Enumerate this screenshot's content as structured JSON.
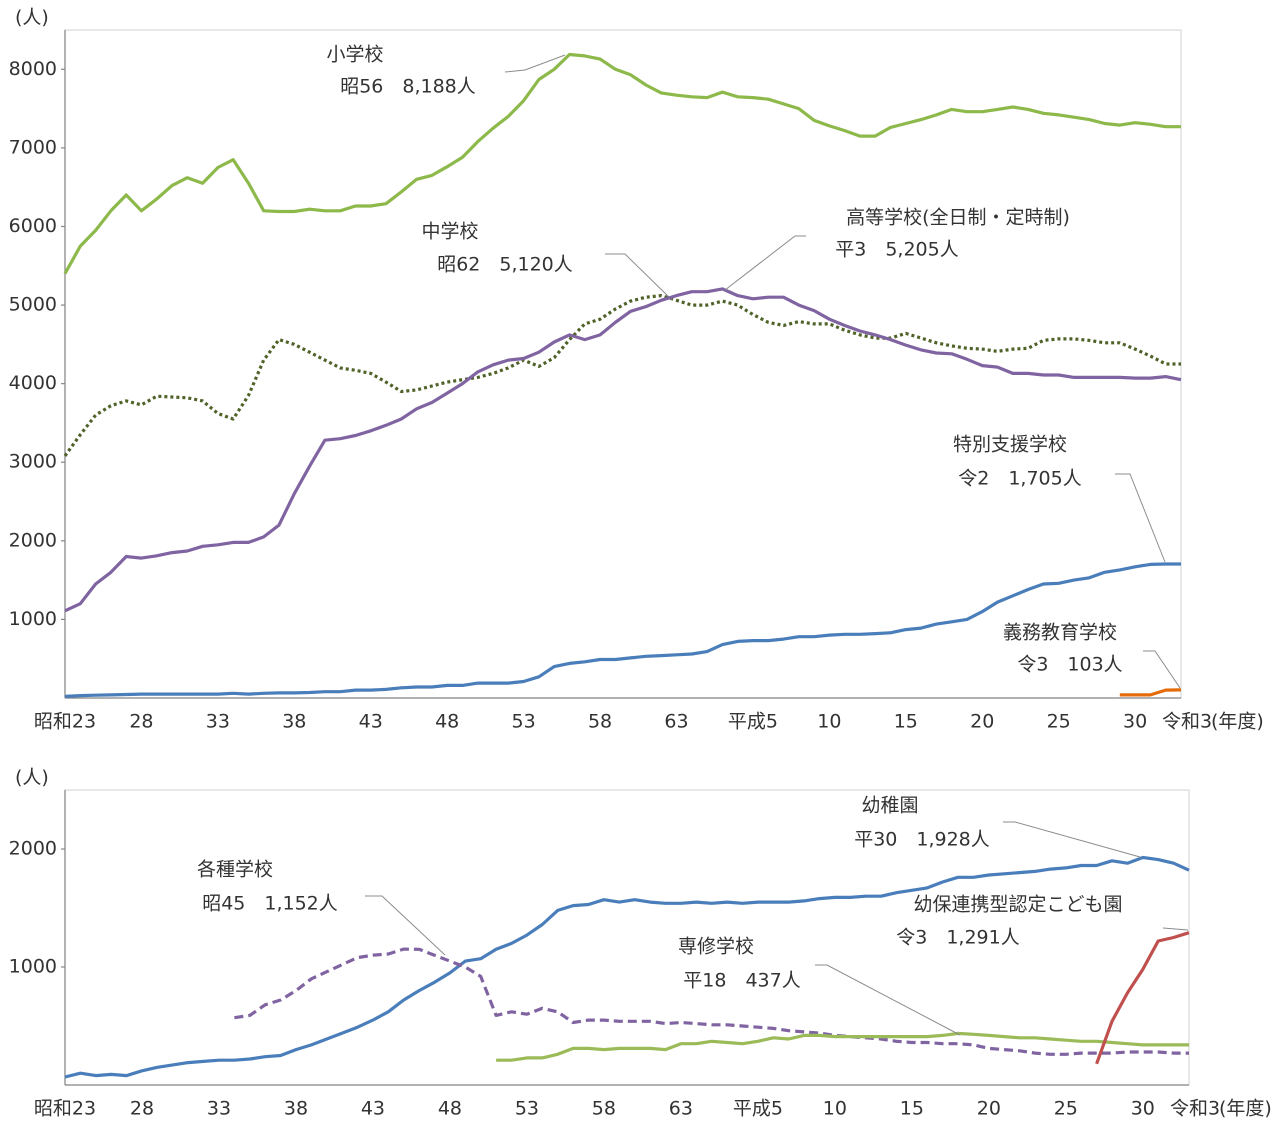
{
  "chart_data": [
    {
      "type": "line",
      "y_unit": "(人)",
      "x_unit": "(年度)",
      "categories": [
        "昭和23",
        null,
        null,
        null,
        null,
        "28",
        null,
        null,
        null,
        null,
        "33",
        null,
        null,
        null,
        null,
        "38",
        null,
        null,
        null,
        null,
        "43",
        null,
        null,
        null,
        null,
        "48",
        null,
        null,
        null,
        null,
        "53",
        null,
        null,
        null,
        null,
        "58",
        null,
        null,
        null,
        null,
        "63",
        null,
        null,
        null,
        null,
        "平成5",
        null,
        null,
        null,
        null,
        "10",
        null,
        null,
        null,
        null,
        "15",
        null,
        null,
        null,
        null,
        "20",
        null,
        null,
        null,
        null,
        "25",
        null,
        null,
        null,
        null,
        "30",
        null,
        null,
        "令和3"
      ],
      "ylim": [
        0,
        8500
      ],
      "yticks": [
        1000,
        2000,
        3000,
        4000,
        5000,
        6000,
        7000,
        8000
      ],
      "grid": false,
      "series": [
        {
          "name": "小学校",
          "annotation": "昭56　8,188人",
          "color": "#8db84a",
          "dash": "solid",
          "values": [
            5400,
            5750,
            5950,
            6200,
            6400,
            6200,
            6350,
            6520,
            6620,
            6550,
            6750,
            6850,
            6550,
            6200,
            6190,
            6190,
            6220,
            6200,
            6200,
            6260,
            6260,
            6290,
            6440,
            6600,
            6650,
            6760,
            6880,
            7080,
            7250,
            7400,
            7600,
            7870,
            8000,
            8188,
            8170,
            8130,
            8000,
            7930,
            7800,
            7700,
            7670,
            7650,
            7640,
            7710,
            7650,
            7640,
            7620,
            7560,
            7500,
            7350,
            7280,
            7220,
            7150,
            7150,
            7260,
            7310,
            7360,
            7420,
            7490,
            7460,
            7460,
            7490,
            7520,
            7490,
            7440,
            7420,
            7390,
            7360,
            7310,
            7290,
            7320,
            7300,
            7270,
            7270
          ]
        },
        {
          "name": "中学校",
          "annotation": "昭62　5,120人",
          "color": "#4f6228",
          "dash": "dotted",
          "values": [
            3080,
            3350,
            3600,
            3720,
            3780,
            3730,
            3840,
            3830,
            3820,
            3780,
            3620,
            3550,
            3850,
            4300,
            4560,
            4500,
            4400,
            4300,
            4200,
            4170,
            4130,
            4020,
            3900,
            3920,
            3970,
            4020,
            4050,
            4080,
            4130,
            4200,
            4300,
            4220,
            4330,
            4560,
            4760,
            4820,
            4950,
            5050,
            5100,
            5120,
            5060,
            5000,
            5000,
            5050,
            5000,
            4880,
            4780,
            4740,
            4790,
            4760,
            4760,
            4680,
            4620,
            4580,
            4580,
            4640,
            4580,
            4520,
            4480,
            4450,
            4440,
            4410,
            4440,
            4450,
            4550,
            4570,
            4570,
            4550,
            4520,
            4520,
            4440,
            4350,
            4250,
            4250
          ]
        },
        {
          "name": "高等学校(全日制・定時制)",
          "annotation": "平3　5,205人",
          "color": "#8064a2",
          "dash": "solid",
          "values": [
            1110,
            1200,
            1450,
            1600,
            1800,
            1780,
            1810,
            1850,
            1870,
            1930,
            1950,
            1980,
            1980,
            2050,
            2200,
            2600,
            2950,
            3280,
            3300,
            3340,
            3400,
            3470,
            3550,
            3680,
            3760,
            3880,
            4000,
            4150,
            4240,
            4300,
            4320,
            4400,
            4530,
            4620,
            4560,
            4620,
            4780,
            4920,
            4980,
            5060,
            5120,
            5170,
            5170,
            5205,
            5120,
            5080,
            5100,
            5100,
            5000,
            4930,
            4820,
            4740,
            4670,
            4620,
            4560,
            4490,
            4430,
            4390,
            4380,
            4310,
            4230,
            4210,
            4130,
            4130,
            4110,
            4110,
            4080,
            4080,
            4080,
            4080,
            4070,
            4070,
            4090,
            4050
          ]
        },
        {
          "name": "特別支援学校",
          "annotation": "令2　1,705人",
          "color": "#4a7ebb",
          "dash": "solid",
          "values": [
            20,
            30,
            35,
            40,
            45,
            50,
            50,
            50,
            50,
            50,
            50,
            60,
            50,
            60,
            65,
            65,
            70,
            80,
            80,
            100,
            100,
            110,
            130,
            140,
            140,
            160,
            160,
            190,
            190,
            190,
            210,
            270,
            400,
            440,
            460,
            490,
            490,
            510,
            530,
            540,
            550,
            560,
            590,
            680,
            720,
            730,
            730,
            750,
            780,
            780,
            800,
            810,
            810,
            820,
            830,
            870,
            890,
            940,
            970,
            1000,
            1100,
            1220,
            1300,
            1380,
            1450,
            1460,
            1500,
            1530,
            1600,
            1630,
            1670,
            1700,
            1705,
            1705
          ]
        },
        {
          "name": "義務教育学校",
          "annotation": "令3　103人",
          "color": "#e46c0a",
          "dash": "solid",
          "values": [
            null,
            null,
            null,
            null,
            null,
            null,
            null,
            null,
            null,
            null,
            null,
            null,
            null,
            null,
            null,
            null,
            null,
            null,
            null,
            null,
            null,
            null,
            null,
            null,
            null,
            null,
            null,
            null,
            null,
            null,
            null,
            null,
            null,
            null,
            null,
            null,
            null,
            null,
            null,
            null,
            null,
            null,
            null,
            null,
            null,
            null,
            null,
            null,
            null,
            null,
            null,
            null,
            null,
            null,
            null,
            null,
            null,
            null,
            null,
            null,
            null,
            null,
            null,
            null,
            null,
            null,
            null,
            null,
            null,
            40,
            40,
            40,
            100,
            103
          ]
        }
      ]
    },
    {
      "type": "line",
      "y_unit": "(人)",
      "x_unit": "(年度)",
      "categories": [
        "昭和23",
        null,
        null,
        null,
        null,
        "28",
        null,
        null,
        null,
        null,
        "33",
        null,
        null,
        null,
        null,
        "38",
        null,
        null,
        null,
        null,
        "43",
        null,
        null,
        null,
        null,
        "48",
        null,
        null,
        null,
        null,
        "53",
        null,
        null,
        null,
        null,
        "58",
        null,
        null,
        null,
        null,
        "63",
        null,
        null,
        null,
        null,
        "平成5",
        null,
        null,
        null,
        null,
        "10",
        null,
        null,
        null,
        null,
        "15",
        null,
        null,
        null,
        null,
        "20",
        null,
        null,
        null,
        null,
        "25",
        null,
        null,
        null,
        null,
        "30",
        null,
        null,
        "令和3"
      ],
      "ylim": [
        0,
        2500
      ],
      "yticks": [
        1000,
        2000
      ],
      "grid": false,
      "series": [
        {
          "name": "幼稚園",
          "annotation": "平30　1,928人",
          "color": "#4a7ebb",
          "dash": "solid",
          "values": [
            68,
            100,
            80,
            90,
            80,
            120,
            150,
            170,
            190,
            200,
            210,
            210,
            220,
            240,
            250,
            300,
            340,
            390,
            440,
            490,
            550,
            620,
            720,
            800,
            870,
            950,
            1050,
            1070,
            1150,
            1200,
            1270,
            1360,
            1480,
            1520,
            1530,
            1570,
            1550,
            1570,
            1550,
            1540,
            1540,
            1550,
            1540,
            1550,
            1540,
            1550,
            1550,
            1550,
            1560,
            1580,
            1590,
            1590,
            1600,
            1600,
            1630,
            1650,
            1670,
            1720,
            1760,
            1760,
            1780,
            1790,
            1800,
            1810,
            1830,
            1840,
            1860,
            1860,
            1900,
            1880,
            1928,
            1910,
            1880,
            1820
          ]
        },
        {
          "name": "各種学校",
          "annotation": "昭45　1,152人",
          "color": "#8064a2",
          "dash": "dashed",
          "values": [
            null,
            null,
            null,
            null,
            null,
            null,
            null,
            null,
            null,
            null,
            null,
            570,
            590,
            680,
            720,
            800,
            900,
            960,
            1020,
            1080,
            1100,
            1110,
            1152,
            1150,
            1100,
            1050,
            1000,
            920,
            590,
            620,
            600,
            650,
            620,
            530,
            550,
            550,
            540,
            540,
            540,
            520,
            530,
            520,
            510,
            510,
            500,
            490,
            480,
            460,
            450,
            440,
            420,
            410,
            400,
            390,
            370,
            360,
            360,
            350,
            350,
            340,
            310,
            300,
            290,
            270,
            260,
            260,
            270,
            270,
            270,
            280,
            280,
            280,
            270,
            270
          ]
        },
        {
          "name": "専修学校",
          "annotation": "平18　437人",
          "color": "#9bbb59",
          "dash": "solid",
          "values": [
            null,
            null,
            null,
            null,
            null,
            null,
            null,
            null,
            null,
            null,
            null,
            null,
            null,
            null,
            null,
            null,
            null,
            null,
            null,
            null,
            null,
            null,
            null,
            null,
            null,
            null,
            null,
            null,
            210,
            210,
            230,
            230,
            260,
            310,
            310,
            300,
            310,
            310,
            310,
            300,
            350,
            350,
            370,
            360,
            350,
            370,
            400,
            390,
            420,
            420,
            410,
            410,
            410,
            410,
            410,
            410,
            410,
            420,
            437,
            430,
            420,
            410,
            400,
            400,
            390,
            380,
            370,
            370,
            360,
            350,
            340,
            340,
            340,
            340
          ]
        },
        {
          "name": "幼保連携型認定こども園",
          "annotation": "令3　1,291人",
          "color": "#c0504d",
          "dash": "solid",
          "values": [
            null,
            null,
            null,
            null,
            null,
            null,
            null,
            null,
            null,
            null,
            null,
            null,
            null,
            null,
            null,
            null,
            null,
            null,
            null,
            null,
            null,
            null,
            null,
            null,
            null,
            null,
            null,
            null,
            null,
            null,
            null,
            null,
            null,
            null,
            null,
            null,
            null,
            null,
            null,
            null,
            null,
            null,
            null,
            null,
            null,
            null,
            null,
            null,
            null,
            null,
            null,
            null,
            null,
            null,
            null,
            null,
            null,
            null,
            null,
            null,
            null,
            null,
            null,
            null,
            null,
            null,
            null,
            180,
            540,
            780,
            980,
            1220,
            1250,
            1291
          ]
        }
      ]
    }
  ]
}
